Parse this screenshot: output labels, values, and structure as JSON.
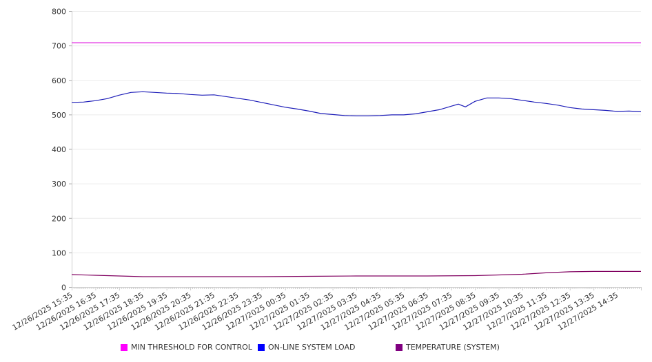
{
  "chart_data": {
    "type": "line",
    "title": "",
    "xlabel": "",
    "ylabel": "",
    "ylim": [
      0,
      800
    ],
    "yticks": [
      0,
      100,
      200,
      300,
      400,
      500,
      600,
      700,
      800
    ],
    "x_unit": "hours since 12/26/2025 15:35",
    "xlim": [
      0,
      24
    ],
    "xtick_labels": [
      "12/26/2025 15:35",
      "12/26/2025 16:35",
      "12/26/2025 17:35",
      "12/26/2025 18:35",
      "12/26/2025 19:35",
      "12/26/2025 20:35",
      "12/26/2025 21:35",
      "12/26/2025 22:35",
      "12/26/2025 23:35",
      "12/27/2025 00:35",
      "12/27/2025 01:35",
      "12/27/2025 02:35",
      "12/27/2025 03:35",
      "12/27/2025 04:35",
      "12/27/2025 05:35",
      "12/27/2025 06:35",
      "12/27/2025 07:35",
      "12/27/2025 08:35",
      "12/27/2025 09:35",
      "12/27/2025 10:35",
      "12/27/2025 11:35",
      "12/27/2025 12:35",
      "12/27/2025 13:35",
      "12/27/2025 14:35"
    ],
    "grid": true,
    "legend_position": "bottom",
    "series": [
      {
        "name": "MIN THRESHOLD FOR CONTROL",
        "color": "#ff00ff",
        "line_color": "#e020e0",
        "x": [
          0,
          24
        ],
        "values": [
          708,
          708
        ]
      },
      {
        "name": "ON-LINE SYSTEM LOAD",
        "color": "#0000ff",
        "line_color": "#1c1cb8",
        "x": [
          0,
          0.5,
          1,
          1.5,
          2,
          2.5,
          3,
          3.5,
          4,
          4.5,
          5,
          5.5,
          6,
          6.5,
          7,
          7.5,
          8,
          8.5,
          9,
          9.5,
          10,
          10.5,
          11,
          11.5,
          12,
          12.5,
          13,
          13.5,
          14,
          14.5,
          15,
          15.5,
          16,
          16.3,
          16.6,
          17,
          17.5,
          18,
          18.5,
          19,
          19.5,
          20,
          20.5,
          21,
          21.5,
          22,
          22.5,
          23,
          23.5,
          24
        ],
        "values": [
          535,
          536,
          540,
          546,
          556,
          564,
          566,
          564,
          562,
          561,
          558,
          556,
          557,
          552,
          547,
          542,
          535,
          528,
          521,
          516,
          510,
          503,
          500,
          497,
          496,
          496,
          497,
          499,
          499,
          502,
          508,
          514,
          524,
          530,
          522,
          538,
          548,
          548,
          546,
          541,
          536,
          532,
          527,
          520,
          516,
          514,
          512,
          509,
          510,
          508
        ]
      },
      {
        "name": "TEMPERATURE (SYSTEM)",
        "color": "#800080",
        "line_color": "#800060",
        "x": [
          0,
          1,
          2,
          3,
          5,
          8,
          10,
          12,
          15,
          17,
          18,
          19,
          20,
          21,
          22,
          24
        ],
        "values": [
          36,
          34,
          32,
          30,
          30,
          30,
          31,
          32,
          32,
          33,
          35,
          37,
          41,
          44,
          45,
          45
        ]
      }
    ]
  }
}
